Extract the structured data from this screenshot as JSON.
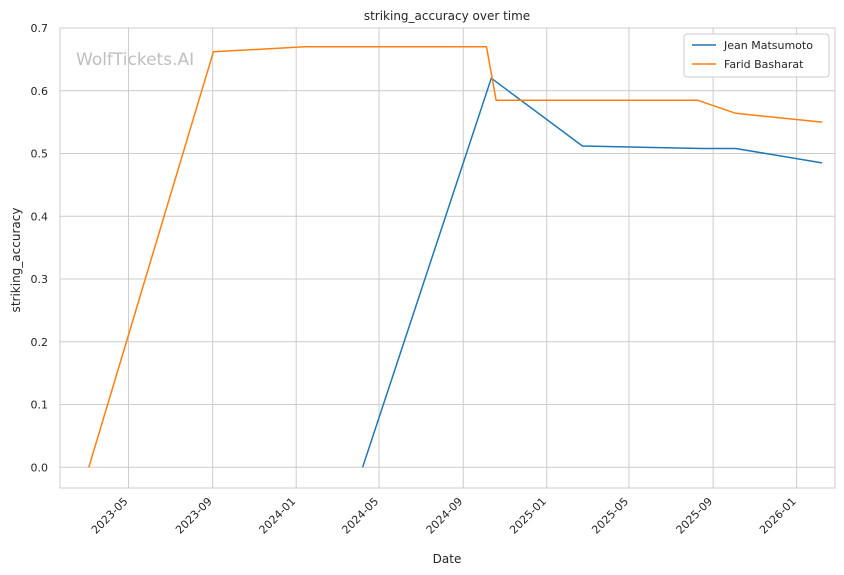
{
  "chart_data": {
    "type": "line",
    "title": "striking_accuracy over time",
    "xlabel": "Date",
    "ylabel": "striking_accuracy",
    "watermark": "WolfTickets.AI",
    "x_ticks": [
      "2023-05",
      "2023-09",
      "2024-01",
      "2024-05",
      "2024-09",
      "2025-01",
      "2025-05",
      "2025-09",
      "2026-01"
    ],
    "y_ticks": [
      "0.0",
      "0.1",
      "0.2",
      "0.3",
      "0.4",
      "0.5",
      "0.6",
      "0.7"
    ],
    "xlim": [
      "2023-01-21",
      "2026-02-26"
    ],
    "ylim": [
      -0.033,
      0.7
    ],
    "grid": true,
    "legend_position": "top-right",
    "series": [
      {
        "name": "Jean Matsumoto",
        "color": "#1f77b4",
        "points": [
          {
            "x": "2024-04-07",
            "y": 0.0
          },
          {
            "x": "2024-10-12",
            "y": 0.62
          },
          {
            "x": "2025-02-22",
            "y": 0.512
          },
          {
            "x": "2025-08-16",
            "y": 0.508
          },
          {
            "x": "2025-10-04",
            "y": 0.508
          },
          {
            "x": "2026-02-07",
            "y": 0.485
          }
        ]
      },
      {
        "name": "Farid Basharat",
        "color": "#ff7f0e",
        "points": [
          {
            "x": "2023-03-04",
            "y": 0.0
          },
          {
            "x": "2023-09-02",
            "y": 0.662
          },
          {
            "x": "2024-01-13",
            "y": 0.67
          },
          {
            "x": "2024-10-05",
            "y": 0.67
          },
          {
            "x": "2024-10-19",
            "y": 0.585
          },
          {
            "x": "2025-08-09",
            "y": 0.585
          },
          {
            "x": "2025-10-04",
            "y": 0.564
          },
          {
            "x": "2026-02-07",
            "y": 0.55
          }
        ]
      }
    ]
  }
}
